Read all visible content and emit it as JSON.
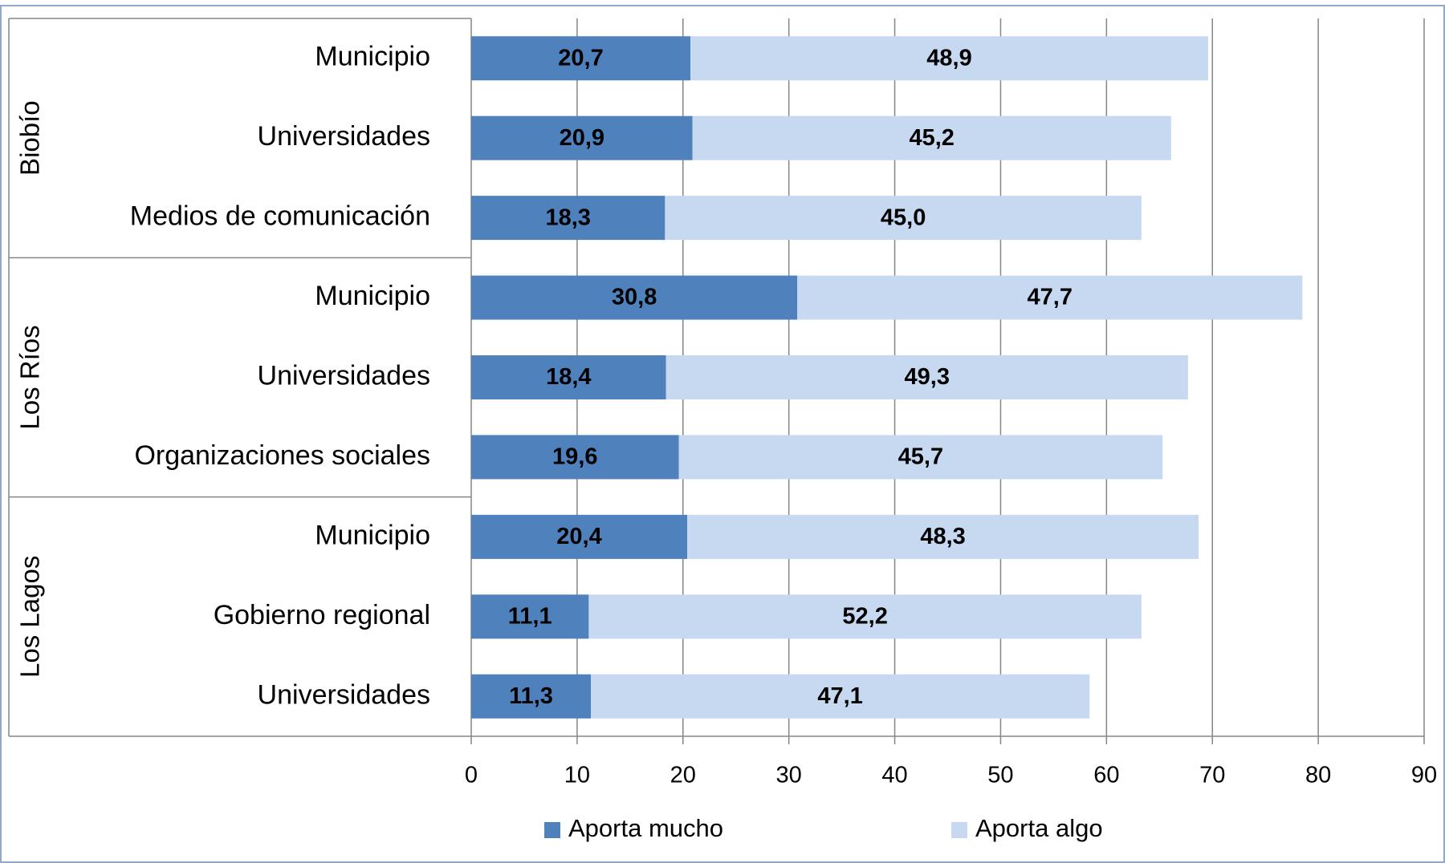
{
  "chart_data": {
    "type": "bar",
    "orientation": "horizontal",
    "stacked": true,
    "groups": [
      {
        "name": "Biobío",
        "categories": [
          "Municipio",
          "Universidades",
          "Medios de comunicación"
        ]
      },
      {
        "name": "Los Ríos",
        "categories": [
          "Municipio",
          "Universidades",
          "Organizaciones sociales"
        ]
      },
      {
        "name": "Los Lagos",
        "categories": [
          "Municipio",
          "Gobierno regional",
          "Universidades"
        ]
      }
    ],
    "series": [
      {
        "name": "Aporta mucho",
        "color": "#4f81bd",
        "values": [
          20.7,
          20.9,
          18.3,
          30.8,
          18.4,
          19.6,
          20.4,
          11.1,
          11.3
        ],
        "value_labels": [
          "20,7",
          "20,9",
          "18,3",
          "30,8",
          "18,4",
          "19,6",
          "20,4",
          "11,1",
          "11,3"
        ]
      },
      {
        "name": "Aporta algo",
        "color": "#c6d9f1",
        "values": [
          48.9,
          45.2,
          45.0,
          47.7,
          49.3,
          45.7,
          48.3,
          52.2,
          47.1
        ],
        "value_labels": [
          "48,9",
          "45,2",
          "45,0",
          "47,7",
          "49,3",
          "45,7",
          "48,3",
          "52,2",
          "47,1"
        ]
      }
    ],
    "xlim": [
      0,
      90
    ],
    "xticks": [
      0,
      10,
      20,
      30,
      40,
      50,
      60,
      70,
      80,
      90
    ],
    "grid": true,
    "legend": "bottom"
  }
}
